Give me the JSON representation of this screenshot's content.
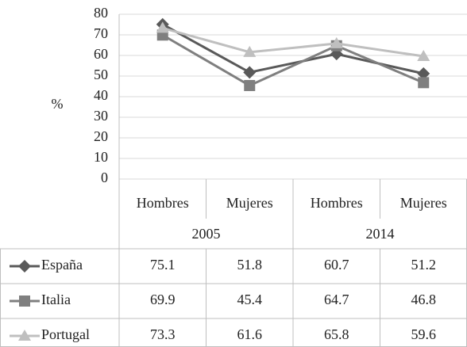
{
  "chart_data": {
    "type": "line",
    "y_label": "%",
    "categories": [
      "Hombres",
      "Mujeres",
      "Hombres",
      "Mujeres"
    ],
    "groups": [
      "2005",
      "2014"
    ],
    "series": [
      {
        "name": "España",
        "color": "#595959",
        "marker": "diamond",
        "values": [
          75.1,
          51.8,
          60.7,
          51.2
        ]
      },
      {
        "name": "Italia",
        "color": "#7f7f7f",
        "marker": "square",
        "values": [
          69.9,
          45.4,
          64.7,
          46.8
        ]
      },
      {
        "name": "Portugal",
        "color": "#bfbfbf",
        "marker": "triangle",
        "values": [
          73.3,
          61.6,
          65.8,
          59.6
        ]
      }
    ],
    "ylim": [
      0,
      80
    ],
    "yticks": [
      0,
      10,
      20,
      30,
      40,
      50,
      60,
      70,
      80
    ],
    "grid": true
  }
}
